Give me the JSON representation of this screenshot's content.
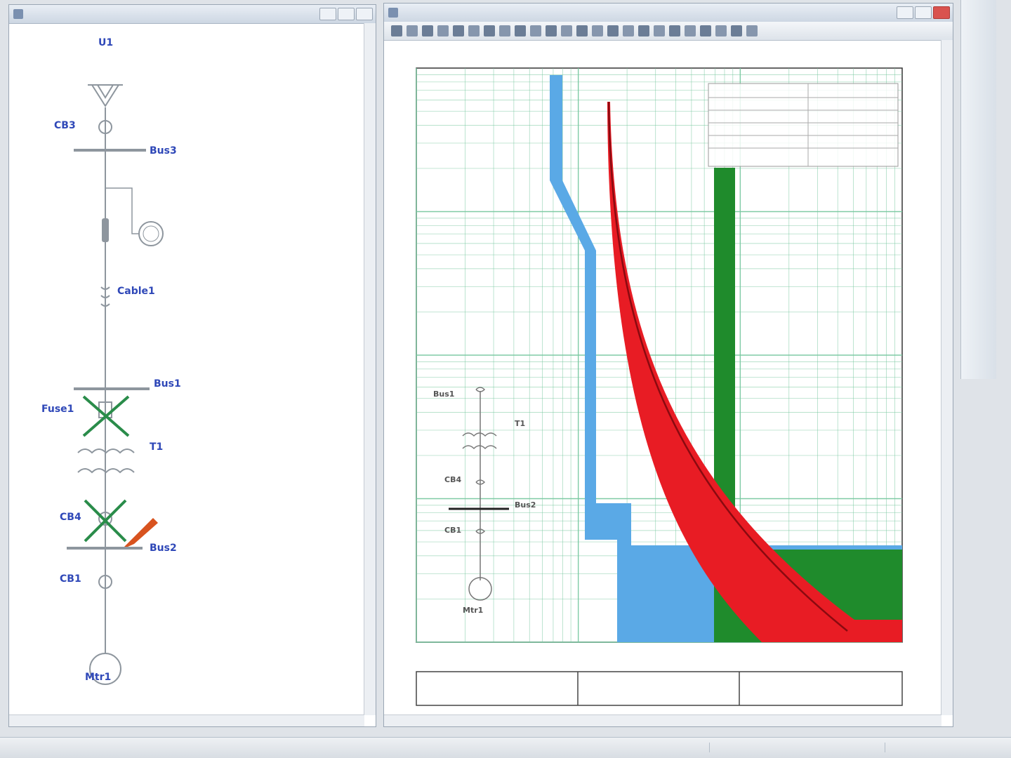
{
  "sld_window": {
    "title": ""
  },
  "sld": {
    "rail_color": "#8e969e",
    "label_color": "#2f48b8",
    "ann_color": "#d9607a",
    "x_color": "#2a8c4a",
    "elements": {
      "utility": {
        "name": "U1"
      },
      "cb3": {
        "name": "CB3"
      },
      "bus3": {
        "name": "Bus3"
      },
      "cable": {
        "name": "Cable1"
      },
      "bus1": {
        "name": "Bus1"
      },
      "fuse": {
        "name": "Fuse1"
      },
      "xfmr": {
        "name": "T1"
      },
      "cb4": {
        "name": "CB4"
      },
      "bus2": {
        "name": "Bus2"
      },
      "cb1": {
        "name": "CB1"
      },
      "motor": {
        "name": "Mtr1"
      }
    }
  },
  "tcc_window": {
    "title": ""
  },
  "tcc": {
    "grid_color": "#78c8a0",
    "border_color": "#333333",
    "curves": [
      {
        "name": "CB1",
        "color": "#5aa9e6",
        "kind": "band"
      },
      {
        "name": "Fuse1",
        "color": "#e81c24",
        "kind": "band"
      },
      {
        "name": "CB3",
        "color": "#1f8b2c",
        "kind": "band"
      }
    ],
    "info_table": {
      "rows": [
        {
          "label": "",
          "value": ""
        },
        {
          "label": "",
          "value": ""
        },
        {
          "label": "",
          "value": ""
        },
        {
          "label": "",
          "value": ""
        },
        {
          "label": "",
          "value": ""
        },
        {
          "label": "",
          "value": ""
        }
      ]
    },
    "mini_sld": {
      "labels": {
        "bus_top": "Bus1",
        "xfmr": "T1",
        "cb_top": "CB4",
        "bus_bot": "Bus2",
        "cb_bot": "CB1",
        "motor": "Mtr1"
      }
    },
    "footer": {
      "center": ""
    }
  },
  "side_tools": [
    {
      "icon": "select-icon",
      "color": "#6a8fc8"
    },
    {
      "icon": "globe-icon",
      "color": "#2f9fa0"
    },
    {
      "icon": "protective-device-icon",
      "color": "#c0392b"
    },
    {
      "icon": "pointer-icon",
      "color": "#c75a6a"
    },
    {
      "icon": "relay-icon",
      "color": "#7a8da8"
    },
    {
      "icon": "breaker-icon",
      "color": "#3e76c0"
    },
    {
      "icon": "monitor-icon",
      "color": "#3e76c0"
    },
    {
      "icon": "warning-icon",
      "color": "#e0a020"
    },
    {
      "icon": "lamp-icon",
      "color": "#e0c020"
    },
    {
      "icon": "document-icon",
      "color": "#6a7fa0"
    },
    {
      "icon": "zoom-icon",
      "color": "#6a7fa0"
    }
  ],
  "statusbar": {
    "left": "",
    "right": ""
  }
}
